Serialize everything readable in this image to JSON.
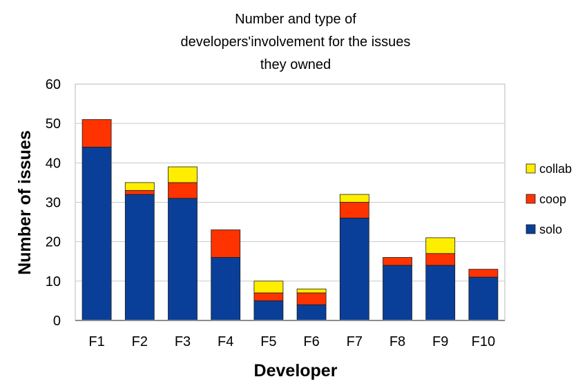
{
  "chart_data": {
    "type": "bar",
    "stacked": true,
    "title_lines": [
      "Number and type of",
      "developers'involvement for the issues",
      "they owned"
    ],
    "xlabel": "Developer",
    "ylabel": "Number of issues",
    "categories": [
      "F1",
      "F2",
      "F3",
      "F4",
      "F5",
      "F6",
      "F7",
      "F8",
      "F9",
      "F10"
    ],
    "series": [
      {
        "name": "solo",
        "color": "#0a3f99",
        "values": [
          44,
          32,
          31,
          16,
          5,
          4,
          26,
          14,
          14,
          11
        ]
      },
      {
        "name": "coop",
        "color": "#ff3300",
        "values": [
          7,
          1,
          4,
          7,
          2,
          3,
          4,
          2,
          3,
          2
        ]
      },
      {
        "name": "collab",
        "color": "#ffee00",
        "values": [
          0,
          2,
          4,
          0,
          3,
          1,
          2,
          0,
          4,
          0
        ]
      }
    ],
    "ylim": [
      0,
      60
    ],
    "yticks": [
      "0",
      "10",
      "20",
      "30",
      "40",
      "50",
      "60"
    ],
    "grid": true,
    "legend_position": "right",
    "legend_order": [
      "collab",
      "coop",
      "solo"
    ]
  }
}
